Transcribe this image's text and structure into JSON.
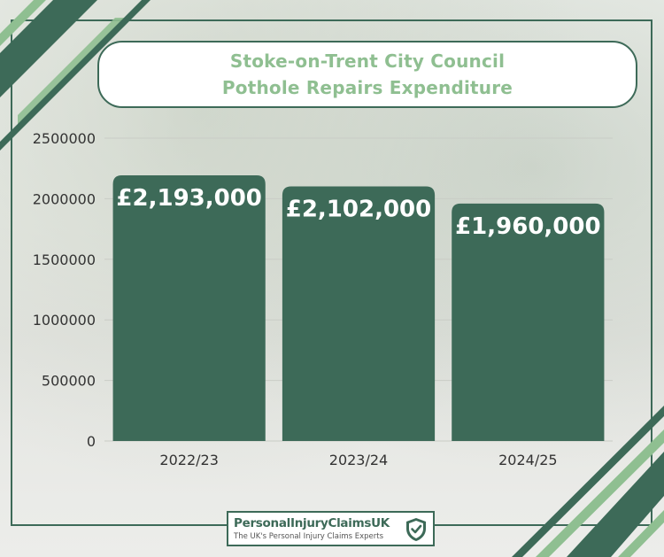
{
  "header": {
    "title_line1": "Stoke-on-Trent City Council",
    "title_line2": "Pothole Repairs Expenditure"
  },
  "chart_data": {
    "type": "bar",
    "title": "Stoke-on-Trent City Council Pothole Repairs Expenditure",
    "categories": [
      "2022/23",
      "2023/24",
      "2024/25"
    ],
    "values": [
      2193000,
      2102000,
      1960000
    ],
    "data_labels": [
      "£2,193,000",
      "£2,102,000",
      "£1,960,000"
    ],
    "yticks": [
      0,
      500000,
      1000000,
      1500000,
      2000000,
      2500000
    ],
    "ylim": [
      0,
      2500000
    ],
    "grid": true,
    "legend": "none",
    "bar_color": "#3d6a58"
  },
  "logo": {
    "name": "PersonalInjuryClaimsUK",
    "tagline": "The UK's Personal Injury Claims Experts",
    "icon": "shield-check-icon"
  },
  "colors": {
    "accent_green": "#3d6a58",
    "light_green": "#8fbf91"
  }
}
